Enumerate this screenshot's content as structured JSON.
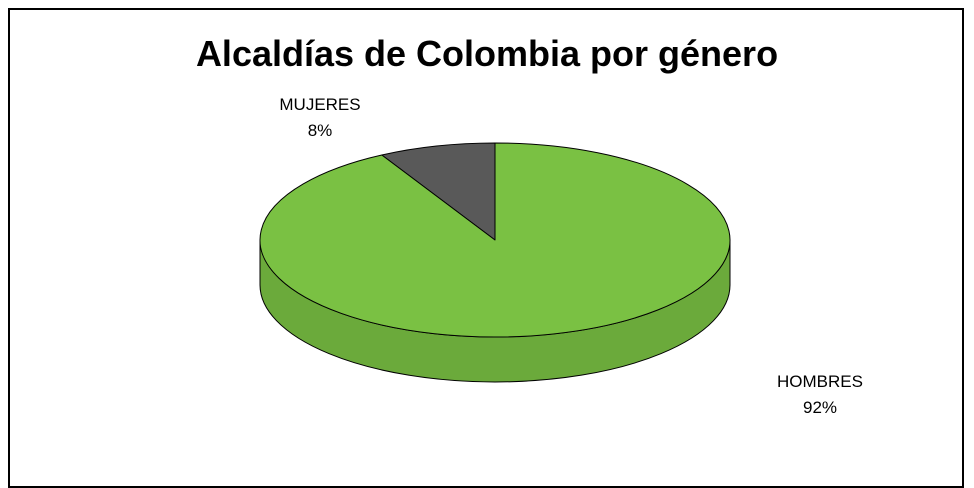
{
  "chart_data": {
    "type": "pie",
    "title": "Alcaldías de Colombia por género",
    "categories": [
      "MUJERES",
      "HOMBRES"
    ],
    "values": [
      8,
      92
    ],
    "labels": [
      {
        "name": "MUJERES",
        "pct": "8%"
      },
      {
        "name": "HOMBRES",
        "pct": "92%"
      }
    ],
    "colors": {
      "MUJERES": "#595959",
      "HOMBRES": "#7ac143"
    },
    "style": "3d",
    "legend": "none"
  }
}
